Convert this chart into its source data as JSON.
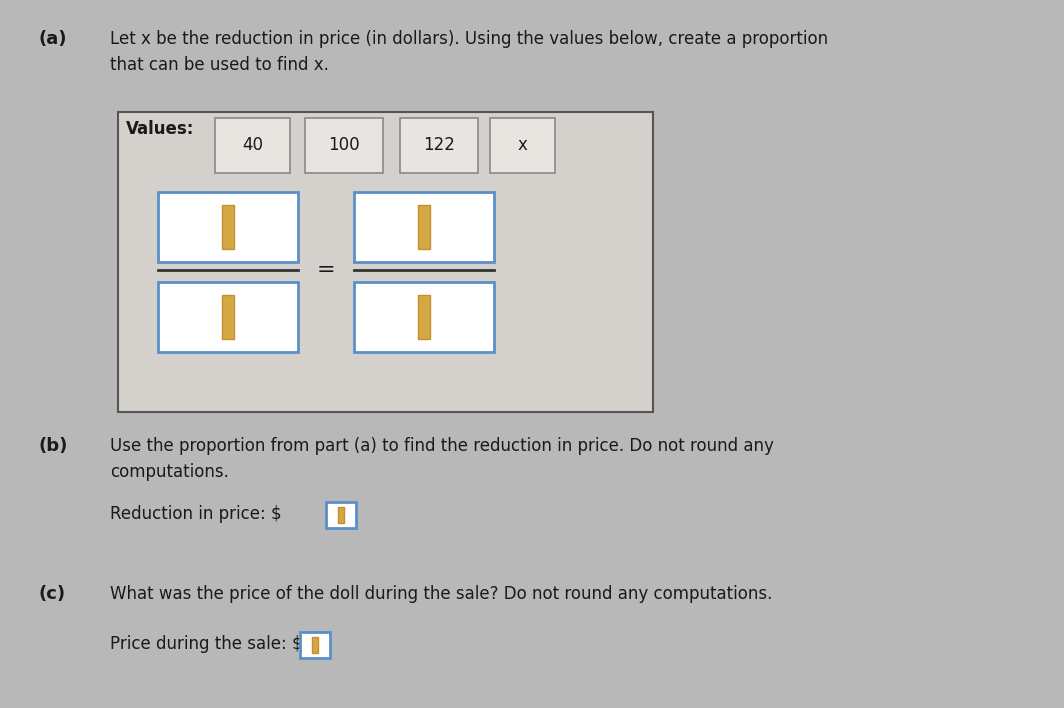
{
  "background_color": "#b8b8b8",
  "page_color": "#d4d0cc",
  "title_part_a": "(a)",
  "text_part_a_line1": "Let x be the reduction in price (in dollars). Using the values below, create a proportion",
  "text_part_a_line2": "that can be used to find x.",
  "values_label": "Values:",
  "values": [
    "40",
    "100",
    "122",
    "x"
  ],
  "equals_sign": "=",
  "title_part_b": "(b)",
  "text_part_b_line1": "Use the proportion from part (a) to find the reduction in price. Do not round any",
  "text_part_b_line2": "computations.",
  "reduction_label": "Reduction in price: $",
  "title_part_c": "(c)",
  "text_part_c": "What was the price of the doll during the sale? Do not round any computations.",
  "sale_price_label": "Price during the sale: $",
  "box_bg": "#ffffff",
  "box_border": "#5b8fc9",
  "input_cursor_color": "#d4a843",
  "input_cursor_border": "#c49030",
  "outer_box_bg": "#d4d0cc",
  "outer_box_border": "#555555",
  "val_box_bg": "#e8e5e0",
  "val_box_border": "#888888",
  "text_color": "#1a1a1a",
  "label_fontsize": 13,
  "body_fontsize": 12,
  "val_fontsize": 12
}
